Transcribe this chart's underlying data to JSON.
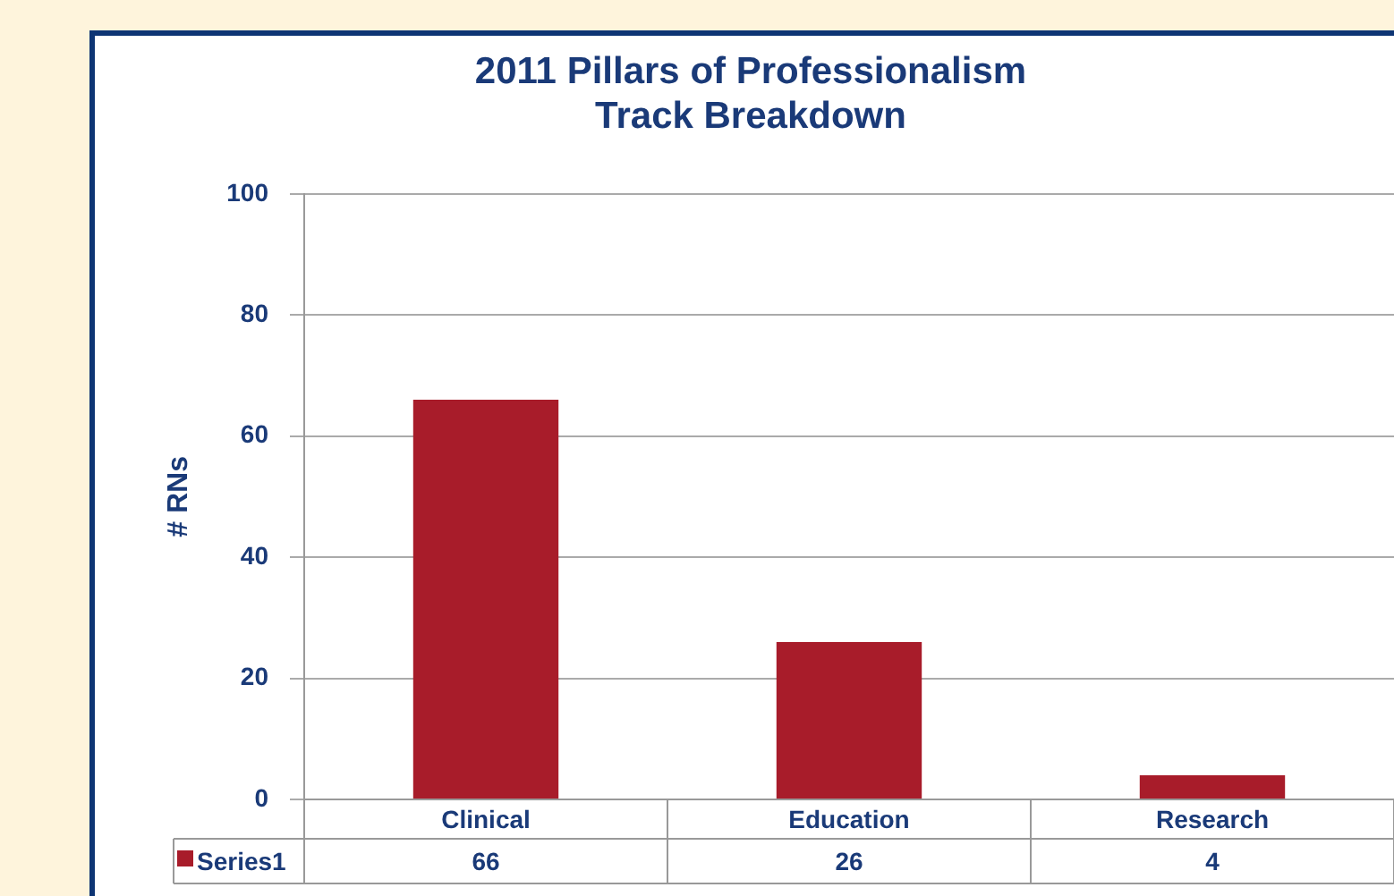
{
  "chart_data": {
    "type": "bar",
    "title": "2011 Pillars of Professionalism\nTrack Breakdown",
    "ylabel": "# RNs",
    "categories": [
      "Clinical",
      "Education",
      "Research"
    ],
    "series": [
      {
        "name": "Series1",
        "color": "#a81c2a",
        "values": [
          66,
          26,
          4
        ]
      }
    ],
    "ylim": [
      0,
      100
    ],
    "yticks": [
      0,
      20,
      40,
      60,
      80,
      100
    ],
    "grid": "y",
    "legend": "bottom",
    "data_labels": true
  }
}
